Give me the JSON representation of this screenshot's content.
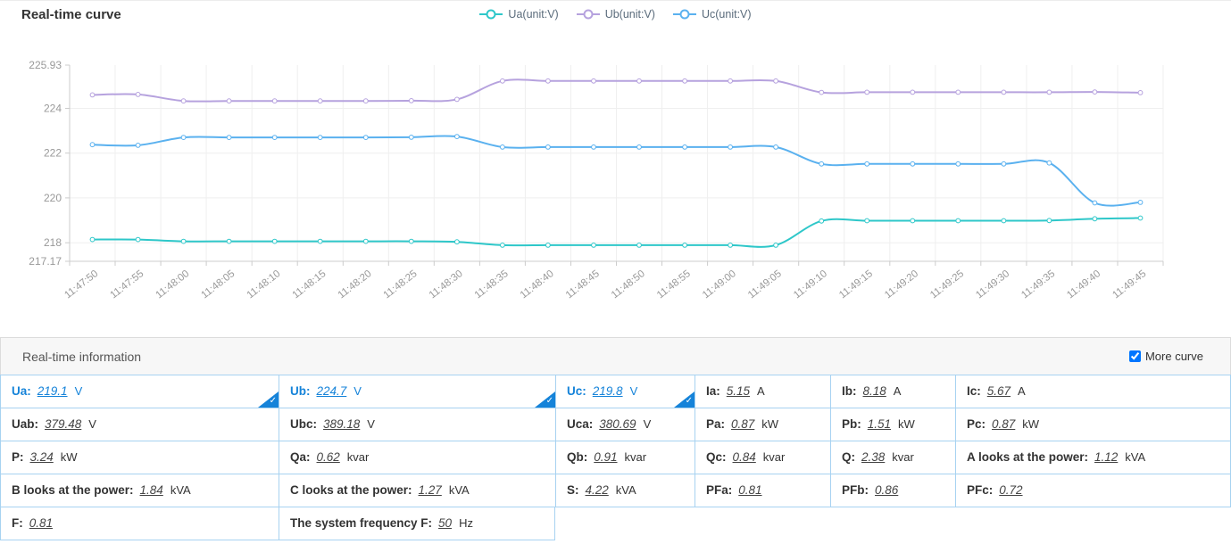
{
  "chart_data": {
    "type": "line",
    "title": "Real-time curve",
    "legend_position": "top",
    "grid": true,
    "marker": "hollow-circle",
    "x": [
      "11:47:50",
      "11:47:55",
      "11:48:00",
      "11:48:05",
      "11:48:10",
      "11:48:15",
      "11:48:20",
      "11:48:25",
      "11:48:30",
      "11:48:35",
      "11:48:40",
      "11:48:45",
      "11:48:50",
      "11:48:55",
      "11:49:00",
      "11:49:05",
      "11:49:10",
      "11:49:15",
      "11:49:20",
      "11:49:25",
      "11:49:30",
      "11:49:35",
      "11:49:40",
      "11:49:45"
    ],
    "ylim": [
      217.17,
      225.93
    ],
    "yticks": [
      {
        "v": 225.93,
        "label": "225.93",
        "grid": false
      },
      {
        "v": 224,
        "label": "224",
        "grid": true
      },
      {
        "v": 222,
        "label": "222",
        "grid": true
      },
      {
        "v": 220,
        "label": "220",
        "grid": true
      },
      {
        "v": 218,
        "label": "218",
        "grid": true
      },
      {
        "v": 217.17,
        "label": "217.17",
        "grid": false
      }
    ],
    "series": [
      {
        "name": "Ua(unit:V)",
        "color": "#2ec7c9",
        "values": [
          218.14,
          218.14,
          218.06,
          218.06,
          218.06,
          218.06,
          218.06,
          218.06,
          218.04,
          217.89,
          217.89,
          217.89,
          217.89,
          217.89,
          217.89,
          217.89,
          218.97,
          218.98,
          218.98,
          218.98,
          218.98,
          218.99,
          219.07,
          219.1
        ]
      },
      {
        "name": "Ub(unit:V)",
        "color": "#b6a2de",
        "values": [
          224.6,
          224.62,
          224.33,
          224.33,
          224.33,
          224.33,
          224.33,
          224.34,
          224.4,
          225.22,
          225.22,
          225.22,
          225.22,
          225.22,
          225.22,
          225.22,
          224.71,
          224.72,
          224.72,
          224.72,
          224.72,
          224.72,
          224.73,
          224.7
        ]
      },
      {
        "name": "Uc(unit:V)",
        "color": "#5ab1ef",
        "values": [
          222.38,
          222.35,
          222.7,
          222.7,
          222.7,
          222.7,
          222.7,
          222.71,
          222.74,
          222.27,
          222.27,
          222.27,
          222.27,
          222.27,
          222.27,
          222.27,
          221.52,
          221.52,
          221.52,
          221.52,
          221.52,
          221.56,
          219.78,
          219.8
        ]
      }
    ]
  },
  "info": {
    "header": "Real-time information",
    "more_curve": {
      "label": "More curve",
      "checked": true
    },
    "rows": [
      [
        {
          "label": "Ua:",
          "value": "219.1",
          "unit": "V"
        },
        {
          "label": "Ub:",
          "value": "224.7",
          "unit": "V"
        },
        {
          "label": "Uc:",
          "value": "219.8",
          "unit": "V"
        },
        {
          "label": "Ia:",
          "value": "5.15",
          "unit": "A"
        },
        {
          "label": "Ib:",
          "value": "8.18",
          "unit": "A"
        },
        {
          "label": "Ic:",
          "value": "5.67",
          "unit": "A"
        }
      ],
      [
        {
          "label": "Uab:",
          "value": "379.48",
          "unit": "V"
        },
        {
          "label": "Ubc:",
          "value": "389.18",
          "unit": "V"
        },
        {
          "label": "Uca:",
          "value": "380.69",
          "unit": "V"
        },
        {
          "label": "Pa:",
          "value": "0.87",
          "unit": "kW"
        },
        {
          "label": "Pb:",
          "value": "1.51",
          "unit": "kW"
        },
        {
          "label": "Pc:",
          "value": "0.87",
          "unit": "kW"
        }
      ],
      [
        {
          "label": "P:",
          "value": "3.24",
          "unit": "kW"
        },
        {
          "label": "Qa:",
          "value": "0.62",
          "unit": "kvar"
        },
        {
          "label": "Qb:",
          "value": "0.91",
          "unit": "kvar"
        },
        {
          "label": "Qc:",
          "value": "0.84",
          "unit": "kvar"
        },
        {
          "label": "Q:",
          "value": "2.38",
          "unit": "kvar"
        },
        {
          "label": "A looks at the power:",
          "value": "1.12",
          "unit": "kVA"
        }
      ],
      [
        {
          "label": "B looks at the power:",
          "value": "1.84",
          "unit": "kVA"
        },
        {
          "label": "C looks at the power:",
          "value": "1.27",
          "unit": "kVA"
        },
        {
          "label": "S:",
          "value": "4.22",
          "unit": "kVA"
        },
        {
          "label": "PFa:",
          "value": "0.81",
          "unit": ""
        },
        {
          "label": "PFb:",
          "value": "0.86",
          "unit": ""
        },
        {
          "label": "PFc:",
          "value": "0.72",
          "unit": ""
        }
      ],
      [
        {
          "label": "F:",
          "value": "0.81",
          "unit": ""
        },
        {
          "label": "The system frequency F:",
          "value": "50",
          "unit": "Hz"
        }
      ]
    ]
  },
  "colors": {
    "accent_blue": "#1583d9",
    "table_border": "#a7d2f1",
    "series_ua": "#2ec7c9",
    "series_ub": "#b6a2de",
    "series_uc": "#5ab1ef",
    "axis_label": "#999999"
  }
}
